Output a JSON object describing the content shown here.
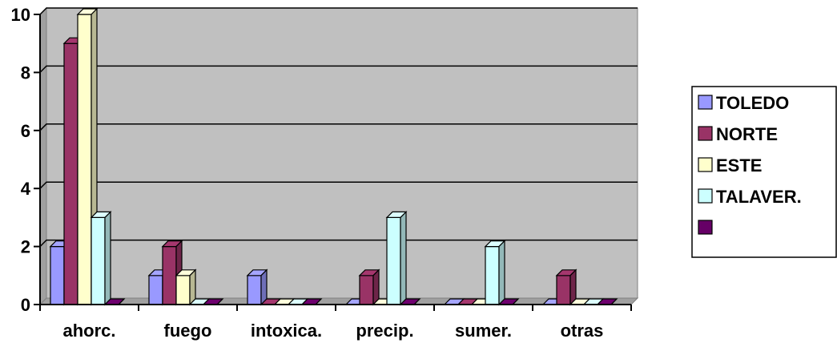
{
  "chart_data": {
    "type": "bar",
    "style": "3d-clustered-column",
    "categories": [
      "ahorc.",
      "fuego",
      "intoxica.",
      "precip.",
      "sumer.",
      "otras"
    ],
    "series": [
      {
        "name": "TOLEDO",
        "color": "#9999FF",
        "values": [
          2,
          1,
          1,
          0,
          0,
          0
        ]
      },
      {
        "name": "NORTE",
        "color": "#993366",
        "values": [
          9,
          2,
          0,
          1,
          0,
          1
        ]
      },
      {
        "name": "ESTE",
        "color": "#FFFFCC",
        "values": [
          10,
          1,
          0,
          0,
          0,
          0
        ]
      },
      {
        "name": "TALAVER.",
        "color": "#CCFFFF",
        "values": [
          3,
          0,
          0,
          3,
          2,
          0
        ]
      },
      {
        "name": "",
        "color": "#660066",
        "values": [
          0,
          0,
          0,
          0,
          0,
          0
        ]
      }
    ],
    "ylim": [
      0,
      10
    ],
    "yticks": [
      "0",
      "2",
      "4",
      "6",
      "8",
      "10"
    ],
    "grid": true,
    "plot_background": "#C0C0C0",
    "legend_position": "right"
  }
}
